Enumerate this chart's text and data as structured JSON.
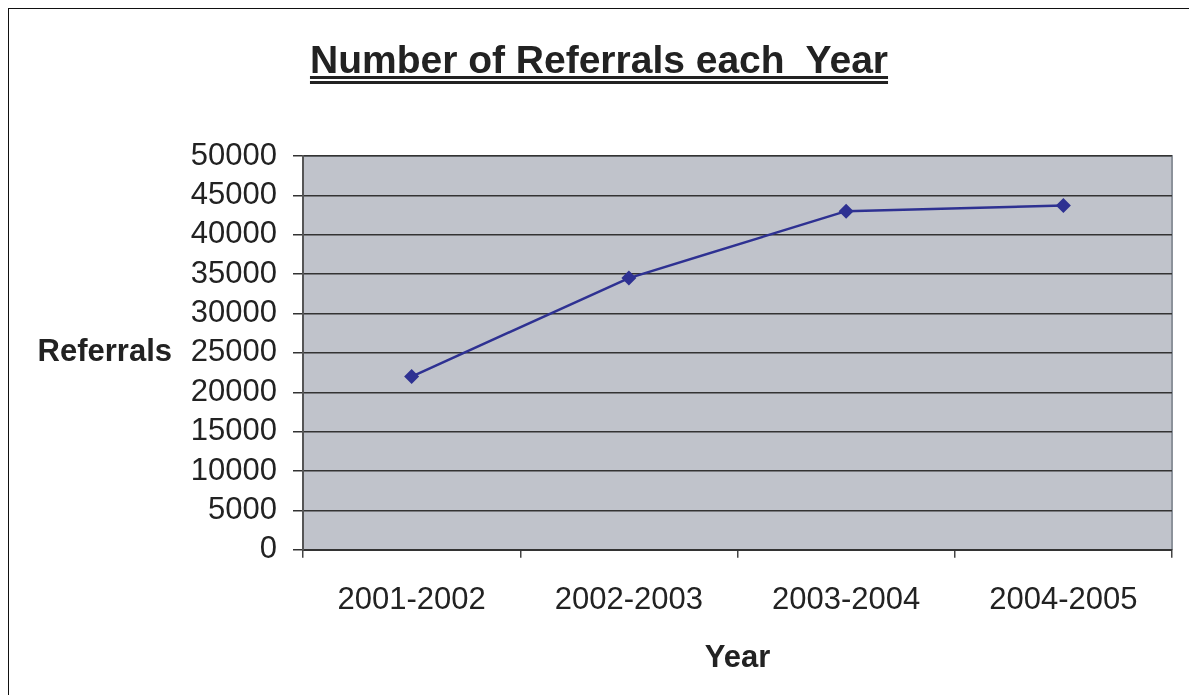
{
  "chart_data": {
    "type": "line",
    "title": "Number of Referrals each  Year",
    "xlabel": "Year",
    "ylabel": "Referrals",
    "categories": [
      "2001-2002",
      "2002-2003",
      "2003-2004",
      "2004-2005"
    ],
    "series": [
      {
        "color": "#2e3192",
        "values": [
          22000,
          34500,
          43000,
          43700
        ]
      }
    ],
    "ylim": [
      0,
      50000
    ],
    "yticks": [
      0,
      5000,
      10000,
      15000,
      20000,
      25000,
      30000,
      35000,
      40000,
      45000,
      50000
    ],
    "grid": "y",
    "marker": "diamond",
    "line_style": "solid"
  }
}
